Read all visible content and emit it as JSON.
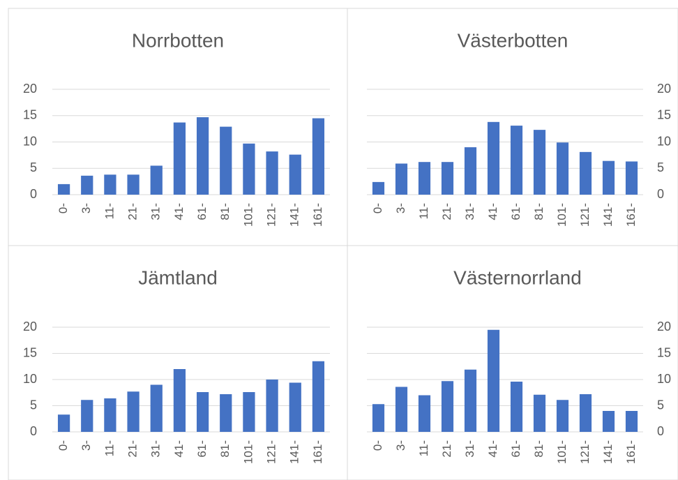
{
  "chart_data": [
    {
      "type": "bar",
      "title": "Norrbotten",
      "categories": [
        "0-",
        "3-",
        "11-",
        "21-",
        "31-",
        "41-",
        "61-",
        "81-",
        "101-",
        "121-",
        "141-",
        "161-"
      ],
      "values": [
        2,
        3.6,
        3.8,
        3.8,
        5.5,
        13.7,
        14.7,
        12.9,
        9.7,
        8.2,
        7.6,
        14.5
      ],
      "color": "#4472c4",
      "ylim": [
        0,
        20
      ],
      "yticks": [
        0,
        5,
        10,
        15,
        20
      ],
      "grid": true,
      "y_axis_side": "left"
    },
    {
      "type": "bar",
      "title": "Västerbotten",
      "categories": [
        "0-",
        "3-",
        "11-",
        "21-",
        "31-",
        "41-",
        "61-",
        "81-",
        "101-",
        "121-",
        "141-",
        "161-"
      ],
      "values": [
        2.4,
        5.9,
        6.2,
        6.2,
        9,
        13.8,
        13.1,
        12.3,
        9.9,
        8.1,
        6.4,
        6.3
      ],
      "color": "#4472c4",
      "ylim": [
        0,
        20
      ],
      "yticks": [
        0,
        5,
        10,
        15,
        20
      ],
      "grid": true,
      "y_axis_side": "right"
    },
    {
      "type": "bar",
      "title": "Jämtland",
      "categories": [
        "0-",
        "3-",
        "11-",
        "21-",
        "31-",
        "41-",
        "61-",
        "81-",
        "101-",
        "121-",
        "141-",
        "161-"
      ],
      "values": [
        3.3,
        6.1,
        6.4,
        7.7,
        9,
        12,
        7.6,
        7.2,
        7.6,
        10,
        9.4,
        13.5
      ],
      "color": "#4472c4",
      "ylim": [
        0,
        20
      ],
      "yticks": [
        0,
        5,
        10,
        15,
        20
      ],
      "grid": true,
      "y_axis_side": "left"
    },
    {
      "type": "bar",
      "title": "Västernorrland",
      "categories": [
        "0-",
        "3-",
        "11-",
        "21-",
        "31-",
        "41-",
        "61-",
        "81-",
        "101-",
        "121-",
        "141-",
        "161-"
      ],
      "values": [
        5.3,
        8.6,
        7,
        9.7,
        11.9,
        19.5,
        9.6,
        7.1,
        6.1,
        7.2,
        4,
        4
      ],
      "color": "#4472c4",
      "ylim": [
        0,
        20
      ],
      "yticks": [
        0,
        5,
        10,
        15,
        20
      ],
      "grid": true,
      "y_axis_side": "right"
    }
  ]
}
